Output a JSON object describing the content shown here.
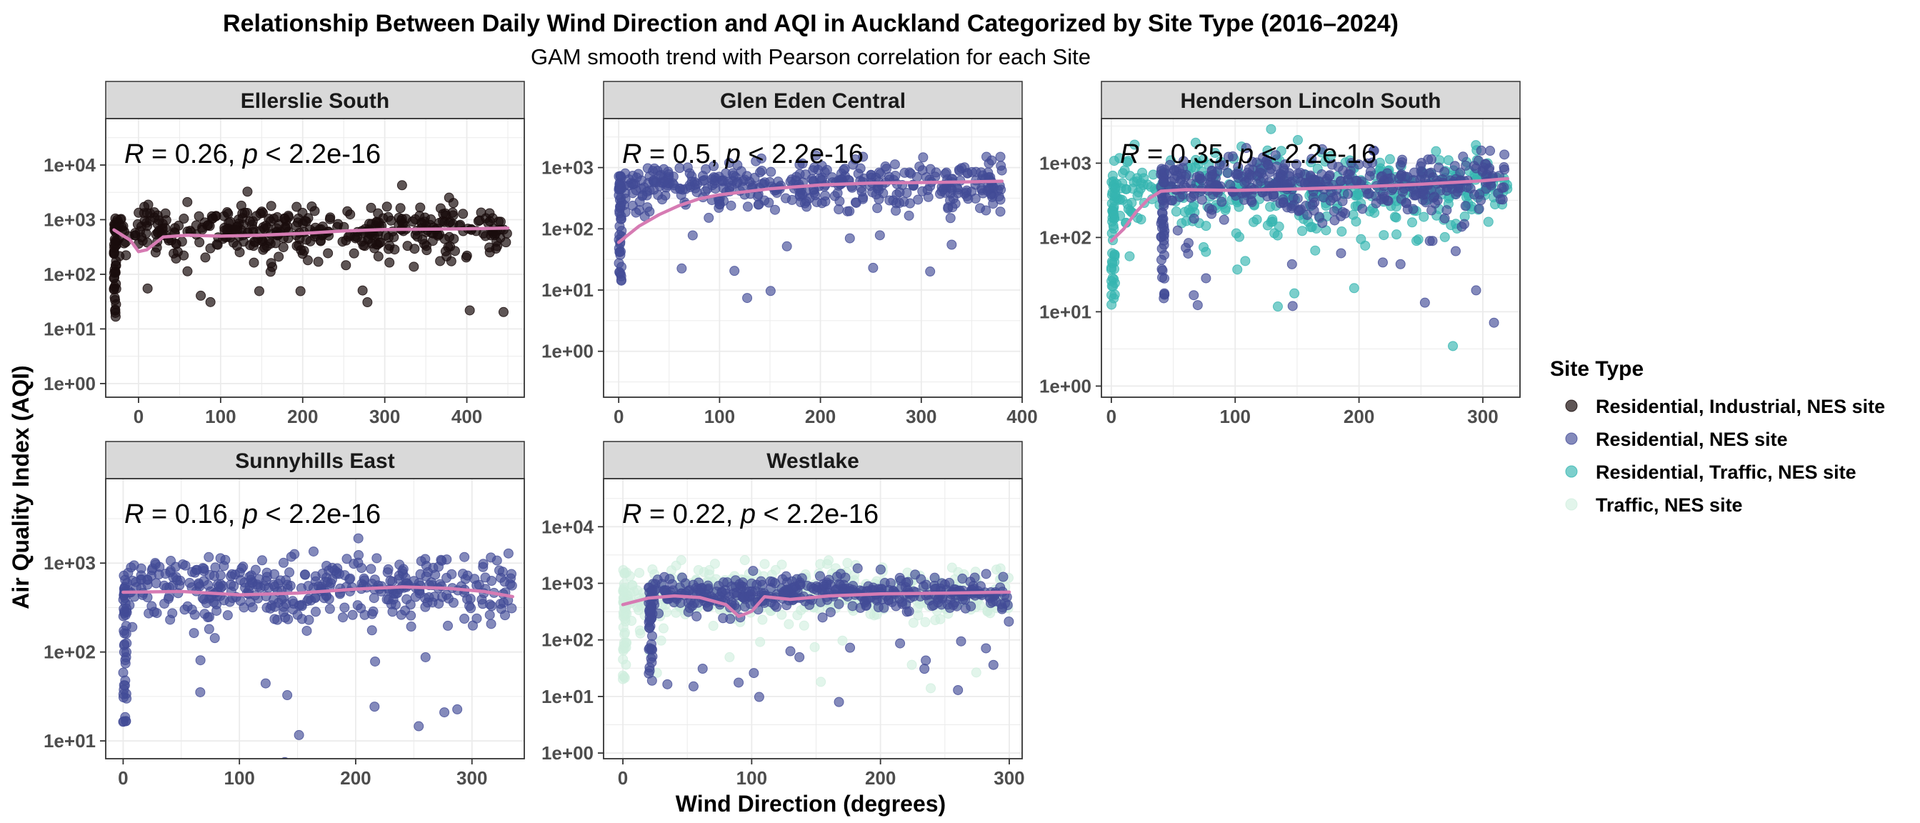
{
  "chart_data": {
    "type": "scatter",
    "title": "Relationship Between Daily Wind Direction and  AQI  in Auckland Categorized by Site Type (2016–2024)",
    "subtitle": "GAM smooth trend with Pearson correlation for each Site",
    "xlabel": "Wind Direction (degrees)",
    "ylabel": "Air Quality Index (AQI)",
    "y_scale": "log10",
    "grid": true,
    "legend": {
      "title": "Site Type",
      "placement": "right",
      "entries": [
        {
          "label": "Residential, Industrial, NES site",
          "color": "#1a0d0d",
          "alpha": 0.7
        },
        {
          "label": "Residential, NES site",
          "color": "#424b96",
          "alpha": 0.65
        },
        {
          "label": "Residential, Traffic, NES site",
          "color": "#35b5b0",
          "alpha": 0.65
        },
        {
          "label": "Traffic, NES site",
          "color": "#cfeedd",
          "alpha": 0.6
        }
      ]
    },
    "smooth_color": "#d67bb3",
    "panels": [
      {
        "name": "Ellerslie South",
        "annotation": {
          "R": "0.26",
          "p": "2.2e-16"
        },
        "xlim": [
          -40,
          470
        ],
        "ylim_log10": [
          -0.25,
          4.85
        ],
        "xticks": [
          0,
          100,
          200,
          300,
          400
        ],
        "yticks": [
          {
            "v": 0,
            "label": "1e+00"
          },
          {
            "v": 1,
            "label": "1e+01"
          },
          {
            "v": 2,
            "label": "1e+02"
          },
          {
            "v": 3,
            "label": "1e+03"
          },
          {
            "v": 4,
            "label": "1e+04"
          }
        ],
        "series": [
          {
            "type": "Residential, Industrial, NES site",
            "x_range": [
              -30,
              450
            ],
            "center": 620,
            "spread": 0.22
          }
        ],
        "smooth": [
          [
            -30,
            650
          ],
          [
            -10,
            420
          ],
          [
            0,
            260
          ],
          [
            10,
            280
          ],
          [
            30,
            480
          ],
          [
            60,
            520
          ],
          [
            100,
            500
          ],
          [
            150,
            520
          ],
          [
            200,
            560
          ],
          [
            250,
            620
          ],
          [
            300,
            660
          ],
          [
            350,
            670
          ],
          [
            400,
            680
          ],
          [
            450,
            700
          ]
        ]
      },
      {
        "name": "Glen Eden Central",
        "annotation": {
          "R": "0.5",
          "p": "2.2e-16"
        },
        "xlim": [
          -15,
          400
        ],
        "ylim_log10": [
          -0.75,
          3.8
        ],
        "xticks": [
          0,
          100,
          200,
          300,
          400
        ],
        "yticks": [
          {
            "v": 0,
            "label": "1e+00"
          },
          {
            "v": 1,
            "label": "1e+01"
          },
          {
            "v": 2,
            "label": "1e+02"
          },
          {
            "v": 3,
            "label": "1e+03"
          }
        ],
        "series": [
          {
            "type": "Residential, NES site",
            "x_range": [
              0,
              380
            ],
            "center": 500,
            "spread": 0.2
          }
        ],
        "smooth": [
          [
            0,
            60
          ],
          [
            20,
            110
          ],
          [
            40,
            170
          ],
          [
            60,
            240
          ],
          [
            80,
            310
          ],
          [
            100,
            360
          ],
          [
            150,
            450
          ],
          [
            200,
            520
          ],
          [
            250,
            560
          ],
          [
            300,
            570
          ],
          [
            340,
            580
          ],
          [
            380,
            600
          ]
        ]
      },
      {
        "name": "Henderson Lincoln South",
        "annotation": {
          "R": "0.35",
          "p": "2.2e-16"
        },
        "xlim": [
          -8,
          330
        ],
        "ylim_log10": [
          -0.15,
          3.6
        ],
        "xticks": [
          0,
          100,
          200,
          300
        ],
        "yticks": [
          {
            "v": 0,
            "label": "1e+00"
          },
          {
            "v": 1,
            "label": "1e+01"
          },
          {
            "v": 2,
            "label": "1e+02"
          },
          {
            "v": 3,
            "label": "1e+03"
          }
        ],
        "series": [
          {
            "type": "Residential, Traffic, NES site",
            "x_range": [
              0,
              320
            ],
            "center": 420,
            "spread": 0.25
          },
          {
            "type": "Residential, NES site",
            "x_range": [
              40,
              320
            ],
            "center": 520,
            "spread": 0.18
          }
        ],
        "smooth": [
          [
            0,
            90
          ],
          [
            10,
            130
          ],
          [
            20,
            220
          ],
          [
            30,
            330
          ],
          [
            40,
            420
          ],
          [
            60,
            440
          ],
          [
            100,
            430
          ],
          [
            150,
            450
          ],
          [
            200,
            480
          ],
          [
            250,
            520
          ],
          [
            300,
            580
          ],
          [
            320,
            620
          ]
        ]
      },
      {
        "name": "Sunnyhills East",
        "annotation": {
          "R": "0.16",
          "p": "2.2e-16"
        },
        "xlim": [
          -15,
          345
        ],
        "ylim_log10": [
          0.8,
          3.95
        ],
        "xticks": [
          0,
          100,
          200,
          300
        ],
        "yticks": [
          {
            "v": 1,
            "label": "1e+01"
          },
          {
            "v": 2,
            "label": "1e+02"
          },
          {
            "v": 3,
            "label": "1e+03"
          }
        ],
        "series": [
          {
            "type": "Residential, NES site",
            "x_range": [
              0,
              335
            ],
            "center": 520,
            "spread": 0.2
          }
        ],
        "smooth": [
          [
            0,
            470
          ],
          [
            50,
            480
          ],
          [
            100,
            440
          ],
          [
            150,
            460
          ],
          [
            200,
            510
          ],
          [
            240,
            540
          ],
          [
            280,
            520
          ],
          [
            310,
            480
          ],
          [
            335,
            420
          ]
        ]
      },
      {
        "name": "Westlake",
        "annotation": {
          "R": "0.22",
          "p": "2.2e-16"
        },
        "xlim": [
          -15,
          310
        ],
        "ylim_log10": [
          -0.1,
          4.85
        ],
        "xticks": [
          0,
          100,
          200,
          300
        ],
        "yticks": [
          {
            "v": 0,
            "label": "1e+00"
          },
          {
            "v": 1,
            "label": "1e+01"
          },
          {
            "v": 2,
            "label": "1e+02"
          },
          {
            "v": 3,
            "label": "1e+03"
          },
          {
            "v": 4,
            "label": "1e+04"
          }
        ],
        "series": [
          {
            "type": "Traffic, NES site",
            "x_range": [
              0,
              300
            ],
            "center": 650,
            "spread": 0.25
          },
          {
            "type": "Residential, NES site",
            "x_range": [
              20,
              300
            ],
            "center": 650,
            "spread": 0.15
          }
        ],
        "smooth": [
          [
            0,
            420
          ],
          [
            20,
            550
          ],
          [
            40,
            600
          ],
          [
            60,
            560
          ],
          [
            80,
            420
          ],
          [
            90,
            260
          ],
          [
            100,
            320
          ],
          [
            110,
            580
          ],
          [
            130,
            520
          ],
          [
            160,
            600
          ],
          [
            200,
            650
          ],
          [
            250,
            670
          ],
          [
            300,
            700
          ]
        ]
      }
    ]
  }
}
